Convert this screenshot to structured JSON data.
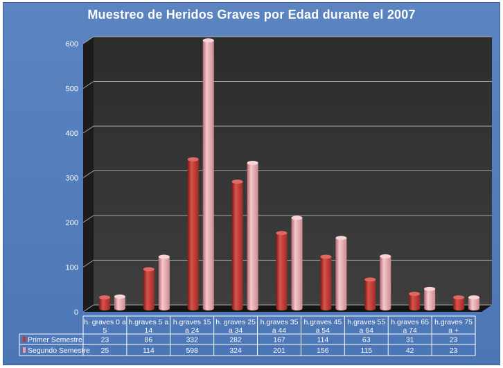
{
  "chart_data": {
    "type": "bar",
    "title": "Muestreo de Heridos Graves por Edad durante el 2007",
    "categories": [
      [
        "h. graves 0 a",
        "5"
      ],
      [
        "h.graves 5 a",
        "14"
      ],
      [
        "h.graves 15",
        "a 24"
      ],
      [
        "h. graves 25",
        "a 34"
      ],
      [
        "h.graves 35",
        "a 44"
      ],
      [
        "h.graves 45",
        "a 54"
      ],
      [
        "h.graves 55",
        "a 64"
      ],
      [
        "h.graves 65",
        "a 74"
      ],
      [
        "h.graves 75",
        "a +"
      ]
    ],
    "series": [
      {
        "name": "Primer Semestre",
        "values": [
          23,
          86,
          332,
          282,
          167,
          114,
          63,
          31,
          23
        ],
        "color": "#c0392b"
      },
      {
        "name": "Segundo Semestre",
        "values": [
          25,
          114,
          598,
          324,
          201,
          156,
          115,
          42,
          23
        ],
        "color": "#e8a1a6"
      }
    ],
    "ylim": [
      0,
      600
    ],
    "yticks": [
      0,
      100,
      200,
      300,
      400,
      500,
      600
    ],
    "grid": true,
    "legend": "data table below chart",
    "colors": {
      "background": "#4f79b8",
      "plot": "#3a3a3a",
      "grid": "#9a9a9a",
      "text": "#ffffff"
    }
  }
}
